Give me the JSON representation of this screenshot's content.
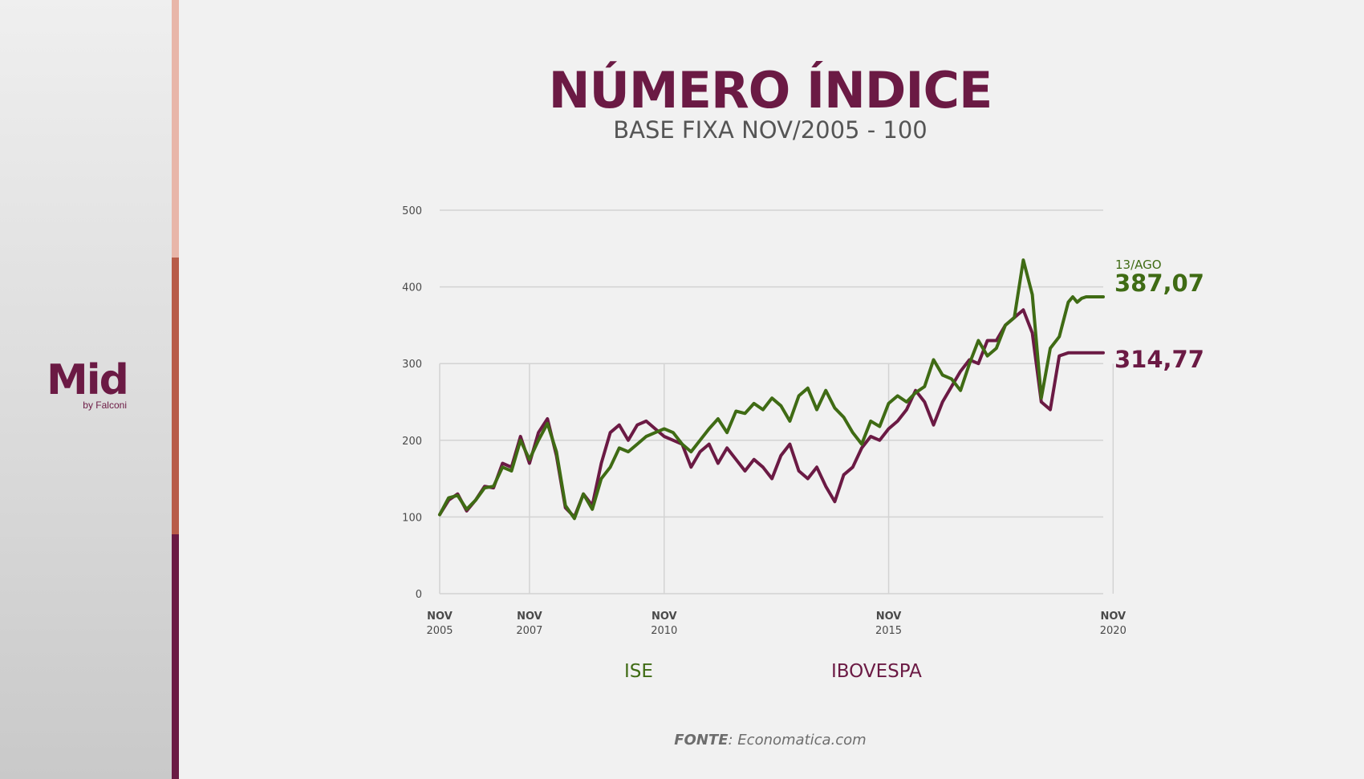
{
  "brand": {
    "name": "Mid",
    "byline": "by Falconi"
  },
  "colors": {
    "ise": "#3f6b14",
    "ibovespa": "#6b1a44",
    "grid": "#d3d3d3",
    "axis_text": "#4a4a4a"
  },
  "source": {
    "label": "FONTE",
    "text": ": Economatica.com"
  },
  "chart_data": {
    "type": "line",
    "title": "NÚMERO ÍNDICE",
    "subtitle": "BASE FIXA NOV/2005 - 100",
    "ylim": [
      0,
      500
    ],
    "yticks": [
      "0",
      "100",
      "200",
      "300",
      "400",
      "500"
    ],
    "xlim": [
      2005.84,
      2020.62
    ],
    "xticks": [
      {
        "month": "NOV",
        "year": "2005"
      },
      {
        "month": "NOV",
        "year": "2007"
      },
      {
        "month": "NOV",
        "year": "2010"
      },
      {
        "month": "NOV",
        "year": "2015"
      },
      {
        "month": "NOV",
        "year": "2020"
      }
    ],
    "grid": true,
    "legend": "bottom",
    "annotation": {
      "date_label": "13/AGO",
      "ise_last": "387,07",
      "ibovespa_last": "314,77"
    },
    "series": [
      {
        "name": "ISE",
        "x": [
          2005.84,
          2006.04,
          2006.24,
          2006.44,
          2006.64,
          2006.84,
          2007.04,
          2007.24,
          2007.44,
          2007.64,
          2007.84,
          2008.04,
          2008.24,
          2008.44,
          2008.64,
          2008.84,
          2009.04,
          2009.24,
          2009.44,
          2009.64,
          2009.84,
          2010.04,
          2010.24,
          2010.44,
          2010.64,
          2010.84,
          2011.04,
          2011.24,
          2011.44,
          2011.64,
          2011.84,
          2012.04,
          2012.24,
          2012.44,
          2012.64,
          2012.84,
          2013.04,
          2013.24,
          2013.44,
          2013.64,
          2013.84,
          2014.04,
          2014.24,
          2014.44,
          2014.64,
          2014.84,
          2015.04,
          2015.24,
          2015.44,
          2015.64,
          2015.84,
          2016.04,
          2016.24,
          2016.44,
          2016.64,
          2016.84,
          2017.04,
          2017.24,
          2017.44,
          2017.64,
          2017.84,
          2018.04,
          2018.24,
          2018.44,
          2018.64,
          2018.84,
          2019.04,
          2019.24,
          2019.44,
          2019.64,
          2019.84,
          2019.94,
          2020.04,
          2020.14,
          2020.24,
          2020.34,
          2020.44,
          2020.54,
          2020.62
        ],
        "values": [
          103,
          125,
          128,
          110,
          122,
          138,
          140,
          165,
          160,
          200,
          175,
          200,
          222,
          185,
          115,
          98,
          130,
          110,
          150,
          165,
          190,
          185,
          195,
          205,
          210,
          215,
          210,
          195,
          185,
          200,
          215,
          228,
          210,
          238,
          235,
          248,
          240,
          255,
          245,
          225,
          258,
          268,
          240,
          265,
          242,
          230,
          210,
          195,
          225,
          218,
          248,
          258,
          250,
          262,
          270,
          305,
          285,
          280,
          265,
          300,
          330,
          310,
          320,
          350,
          360,
          435,
          390,
          255,
          320,
          335,
          380,
          387,
          380,
          385,
          387,
          387,
          387,
          387,
          387
        ]
      },
      {
        "name": "IBOVESPA",
        "x": [
          2005.84,
          2006.04,
          2006.24,
          2006.44,
          2006.64,
          2006.84,
          2007.04,
          2007.24,
          2007.44,
          2007.64,
          2007.84,
          2008.04,
          2008.24,
          2008.44,
          2008.64,
          2008.84,
          2009.04,
          2009.24,
          2009.44,
          2009.64,
          2009.84,
          2010.04,
          2010.24,
          2010.44,
          2010.64,
          2010.84,
          2011.04,
          2011.24,
          2011.44,
          2011.64,
          2011.84,
          2012.04,
          2012.24,
          2012.44,
          2012.64,
          2012.84,
          2013.04,
          2013.24,
          2013.44,
          2013.64,
          2013.84,
          2014.04,
          2014.24,
          2014.44,
          2014.64,
          2014.84,
          2015.04,
          2015.24,
          2015.44,
          2015.64,
          2015.84,
          2016.04,
          2016.24,
          2016.44,
          2016.64,
          2016.84,
          2017.04,
          2017.24,
          2017.44,
          2017.64,
          2017.84,
          2018.04,
          2018.24,
          2018.44,
          2018.64,
          2018.84,
          2019.04,
          2019.24,
          2019.44,
          2019.64,
          2019.84,
          2019.94,
          2020.04,
          2020.14,
          2020.24,
          2020.34,
          2020.44,
          2020.54,
          2020.62
        ],
        "values": [
          103,
          122,
          130,
          108,
          122,
          140,
          138,
          170,
          165,
          205,
          170,
          210,
          228,
          180,
          112,
          100,
          130,
          115,
          170,
          210,
          220,
          200,
          220,
          225,
          215,
          205,
          200,
          195,
          165,
          185,
          195,
          170,
          190,
          175,
          160,
          175,
          165,
          150,
          180,
          195,
          160,
          150,
          165,
          140,
          120,
          155,
          165,
          190,
          205,
          200,
          215,
          225,
          240,
          265,
          250,
          220,
          250,
          270,
          290,
          305,
          300,
          330,
          330,
          350,
          360,
          370,
          340,
          250,
          240,
          310,
          314,
          314,
          314,
          314,
          314,
          314,
          314,
          314,
          314
        ]
      }
    ]
  }
}
